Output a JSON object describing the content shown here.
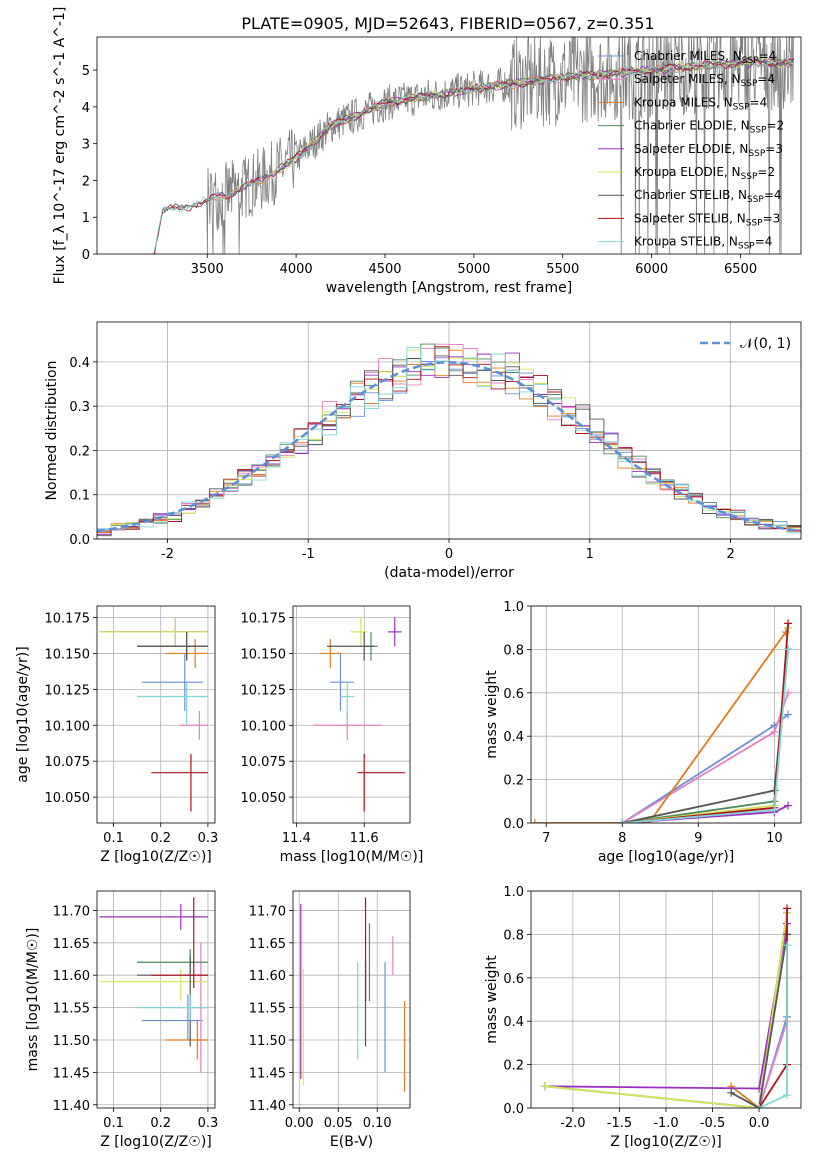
{
  "title": "PLATE=0905, MJD=52643, FIBERID=0567, z=0.351",
  "models": [
    {
      "name": "Chabrier MILES",
      "nssp": "4",
      "color": "#6b8fd6"
    },
    {
      "name": "Salpeter MILES",
      "nssp": "4",
      "color": "#e87fc4"
    },
    {
      "name": "Kroupa MILES",
      "nssp": "4",
      "color": "#e07b1e"
    },
    {
      "name": "Chabrier ELODIE",
      "nssp": "2",
      "color": "#4f8a5a"
    },
    {
      "name": "Salpeter ELODIE",
      "nssp": "3",
      "color": "#9b30c0"
    },
    {
      "name": "Kroupa ELODIE",
      "nssp": "2",
      "color": "#d4e35a"
    },
    {
      "name": "Chabrier STELIB",
      "nssp": "4",
      "color": "#555555"
    },
    {
      "name": "Salpeter STELIB",
      "nssp": "3",
      "color": "#b0121b"
    },
    {
      "name": "Kroupa STELIB",
      "nssp": "4",
      "color": "#7fd6d6"
    }
  ],
  "chart_data": [
    {
      "type": "line",
      "id": "spectrum",
      "title": "PLATE=0905, MJD=52643, FIBERID=0567, z=0.351",
      "xlabel": "wavelength [Angstrom, rest frame]",
      "ylabel": "Flux [f_λ 10^-17 erg cm^-2 s^-1 A^-1]",
      "xlim": [
        2880,
        6840
      ],
      "ylim": [
        0,
        5.9
      ],
      "xticks": [
        3500,
        4000,
        4500,
        5000,
        5500,
        6000,
        6500
      ],
      "yticks": [
        0,
        1,
        2,
        3,
        4,
        5
      ],
      "data_trend": {
        "x": [
          3200,
          3250,
          3400,
          3600,
          3800,
          4000,
          4200,
          4500,
          5000,
          5500,
          6000,
          6500,
          6800
        ],
        "y": [
          0.0,
          1.2,
          1.3,
          1.6,
          2.0,
          2.6,
          3.5,
          4.1,
          4.5,
          4.8,
          5.0,
          5.2,
          5.2
        ]
      },
      "grid": false,
      "legend": "upper right"
    },
    {
      "type": "bar",
      "id": "residuals",
      "xlabel": "(data-model)/error",
      "ylabel": "Normed distribution",
      "xlim": [
        -2.5,
        2.5
      ],
      "ylim": [
        0,
        0.49
      ],
      "xticks": [
        -2,
        -1,
        0,
        1,
        2
      ],
      "yticks": [
        0.0,
        0.1,
        0.2,
        0.3,
        0.4
      ],
      "reference": {
        "name": "𝒩(0, 1)",
        "mean": 0,
        "sigma": 1,
        "color": "#5b8fd8"
      },
      "grid": true,
      "legend": "upper right"
    },
    {
      "type": "scatter",
      "id": "Z-age",
      "xlabel": "Z [log10(Z/Z☉)]",
      "ylabel": "age  [log10(age/yr)]",
      "xlim": [
        0.065,
        0.315
      ],
      "ylim": [
        10.032,
        10.183
      ],
      "xticks": [
        0.1,
        0.2,
        0.3
      ],
      "yticks": [
        10.05,
        10.075,
        10.1,
        10.125,
        10.15,
        10.175
      ],
      "grid": true
    },
    {
      "type": "scatter",
      "id": "mass-age",
      "xlabel": "mass [log10(M/M☉)]",
      "ylabel": "",
      "xlim": [
        11.39,
        11.735
      ],
      "ylim": [
        10.032,
        10.183
      ],
      "xticks": [
        11.4,
        11.6
      ],
      "yticks": [
        10.05,
        10.075,
        10.1,
        10.125,
        10.15,
        10.175
      ],
      "grid": true
    },
    {
      "type": "line",
      "id": "age-weight",
      "xlabel": "age  [log10(age/yr)]",
      "ylabel": "mass weight",
      "xlim": [
        6.8,
        10.35
      ],
      "ylim": [
        0,
        1.0
      ],
      "xticks": [
        7,
        8,
        9,
        10
      ],
      "yticks": [
        0.0,
        0.2,
        0.4,
        0.6,
        0.8,
        1.0
      ],
      "grid": true
    },
    {
      "type": "scatter",
      "id": "Z-mass",
      "xlabel": "Z [log10(Z/Z☉)]",
      "ylabel": "mass [log10(M/M☉)]",
      "xlim": [
        0.065,
        0.315
      ],
      "ylim": [
        11.395,
        11.73
      ],
      "xticks": [
        0.1,
        0.2,
        0.3
      ],
      "yticks": [
        11.4,
        11.45,
        11.5,
        11.55,
        11.6,
        11.65,
        11.7
      ],
      "grid": true
    },
    {
      "type": "scatter",
      "id": "EBV-mass",
      "xlabel": "E(B-V)",
      "ylabel": "",
      "xlim": [
        -0.008,
        0.142
      ],
      "ylim": [
        11.395,
        11.73
      ],
      "xticks": [
        0.0,
        0.05,
        0.1
      ],
      "yticks": [
        11.4,
        11.45,
        11.5,
        11.55,
        11.6,
        11.65,
        11.7
      ],
      "grid": true
    },
    {
      "type": "line",
      "id": "Z-weight",
      "xlabel": "Z [log10(Z/Z☉)]",
      "ylabel": "mass weight",
      "xlim": [
        -2.45,
        0.45
      ],
      "ylim": [
        0,
        1.0
      ],
      "xticks": [
        -2.0,
        -1.5,
        -1.0,
        -0.5,
        0.0
      ],
      "yticks": [
        0.0,
        0.2,
        0.4,
        0.6,
        0.8,
        1.0
      ],
      "grid": true
    }
  ],
  "model_values": [
    {
      "Z": [
        0.16,
        0.29
      ],
      "age": [
        10.13,
        10.11,
        10.15
      ],
      "mass": [
        11.53,
        11.5,
        11.57
      ],
      "ebv": [
        0.11,
        11.45,
        11.62
      ],
      "age_weight": [
        [
          8.0,
          0.0
        ],
        [
          10.0,
          0.45
        ],
        [
          10.18,
          0.5
        ]
      ],
      "Z_weight": [
        [
          0.0,
          0.0
        ],
        [
          0.3,
          0.42
        ],
        [
          0.3,
          0.85
        ]
      ]
    },
    {
      "Z": [
        0.24,
        0.3
      ],
      "age": [
        10.1,
        10.09,
        10.11
      ],
      "mass": [
        11.55,
        11.45,
        11.65
      ],
      "ebv": [
        0.12,
        11.6,
        11.66
      ],
      "age_weight": [
        [
          8.0,
          0.0
        ],
        [
          10.0,
          0.42
        ],
        [
          10.18,
          0.6
        ]
      ],
      "Z_weight": [
        [
          0.0,
          0.0
        ],
        [
          0.3,
          0.4
        ],
        [
          0.3,
          0.8
        ]
      ]
    },
    {
      "Z": [
        0.21,
        0.3
      ],
      "age": [
        10.15,
        10.14,
        10.16
      ],
      "mass": [
        11.5,
        11.47,
        11.53
      ],
      "ebv": [
        0.135,
        11.42,
        11.56
      ],
      "age_weight": [
        [
          6.85,
          0.0
        ],
        [
          8.35,
          0.0
        ],
        [
          10.15,
          0.88
        ]
      ],
      "Z_weight": [
        [
          -0.3,
          0.1
        ],
        [
          0.0,
          0.0
        ],
        [
          0.3,
          0.9
        ]
      ]
    },
    {
      "Z": [
        0.15,
        0.3
      ],
      "age": [
        10.155,
        10.145,
        10.165
      ],
      "mass": [
        11.62,
        11.6,
        11.64
      ],
      "ebv": [
        0.09,
        11.56,
        11.68
      ],
      "age_weight": [
        [
          8.0,
          0.0
        ],
        [
          10.0,
          0.1
        ],
        [
          10.18,
          0.9
        ]
      ],
      "Z_weight": [
        [
          -2.3,
          0.1
        ],
        [
          0.0,
          0.0
        ],
        [
          0.3,
          0.9
        ]
      ]
    },
    {
      "Z": [
        0.07,
        0.3
      ],
      "age": [
        10.165,
        10.155,
        10.175
      ],
      "mass": [
        11.69,
        11.67,
        11.71
      ],
      "ebv": [
        0.002,
        11.44,
        11.71
      ],
      "age_weight": [
        [
          8.0,
          0.0
        ],
        [
          10.0,
          0.05
        ],
        [
          10.18,
          0.08
        ]
      ],
      "Z_weight": [
        [
          -2.3,
          0.1
        ],
        [
          0.0,
          0.09
        ],
        [
          0.3,
          0.85
        ]
      ]
    },
    {
      "Z": [
        0.07,
        0.3
      ],
      "age": [
        10.165,
        10.155,
        10.175
      ],
      "mass": [
        11.59,
        11.56,
        11.61
      ],
      "ebv": [
        0.005,
        11.43,
        11.61
      ],
      "age_weight": [
        [
          8.0,
          0.0
        ],
        [
          10.0,
          0.08
        ],
        [
          10.18,
          0.9
        ]
      ],
      "Z_weight": [
        [
          -2.3,
          0.1
        ],
        [
          0.0,
          0.0
        ],
        [
          0.3,
          0.9
        ]
      ]
    },
    {
      "Z": [
        0.15,
        0.3
      ],
      "age": [
        10.155,
        10.145,
        10.165
      ],
      "mass": [
        11.6,
        11.49,
        11.63
      ],
      "ebv": [
        0.085,
        11.49,
        11.62
      ],
      "age_weight": [
        [
          8.0,
          0.0
        ],
        [
          10.0,
          0.15
        ],
        [
          10.18,
          0.8
        ]
      ],
      "Z_weight": [
        [
          -0.3,
          0.07
        ],
        [
          0.0,
          0.0
        ],
        [
          0.3,
          0.8
        ]
      ]
    },
    {
      "Z": [
        0.18,
        0.3
      ],
      "age": [
        10.067,
        10.04,
        10.08
      ],
      "mass": [
        11.6,
        11.58,
        11.72
      ],
      "ebv": [
        0.085,
        11.56,
        11.72
      ],
      "age_weight": [
        [
          8.0,
          0.0
        ],
        [
          10.0,
          0.07
        ],
        [
          10.18,
          0.92
        ]
      ],
      "Z_weight": [
        [
          0.0,
          0.0
        ],
        [
          0.3,
          0.2
        ],
        [
          0.3,
          0.92
        ]
      ]
    },
    {
      "Z": [
        0.15,
        0.3
      ],
      "age": [
        10.12,
        10.1,
        10.13
      ],
      "mass": [
        11.55,
        11.53,
        11.57
      ],
      "ebv": [
        0.075,
        11.47,
        11.62
      ],
      "age_weight": [
        [
          8.0,
          0.0
        ],
        [
          10.0,
          0.06
        ],
        [
          10.18,
          0.8
        ]
      ],
      "Z_weight": [
        [
          0.0,
          0.0
        ],
        [
          0.3,
          0.06
        ],
        [
          0.3,
          0.75
        ]
      ]
    }
  ]
}
